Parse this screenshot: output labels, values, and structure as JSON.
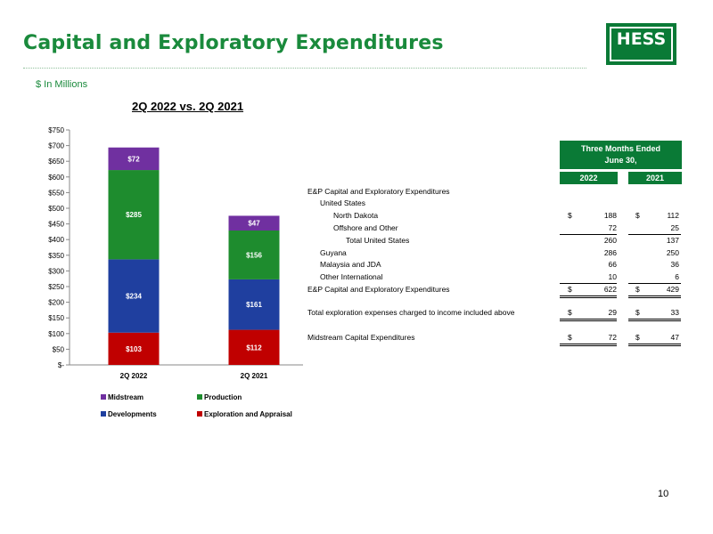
{
  "slide": {
    "title": "Capital and Exploratory Expenditures",
    "units": "$ In Millions",
    "page_number": "10",
    "logo_text": "HESS",
    "chart_heading": "2Q 2022 vs. 2Q 2021"
  },
  "colors": {
    "brand_green": "#0a7a36",
    "title_green": "#1a8a3c",
    "midstream": "#7030a0",
    "production": "#1e8c2e",
    "developments": "#1f3f9f",
    "exploration": "#c00000"
  },
  "chart_data": {
    "type": "bar",
    "stacked": true,
    "categories": [
      "2Q 2022",
      "2Q 2021"
    ],
    "series": [
      {
        "name": "Exploration and Appraisal",
        "values": [
          103,
          112
        ],
        "labels": [
          "$103",
          "$112"
        ],
        "color": "#c00000"
      },
      {
        "name": "Developments",
        "values": [
          234,
          161
        ],
        "labels": [
          "$234",
          "$161"
        ],
        "color": "#1f3f9f"
      },
      {
        "name": "Production",
        "values": [
          285,
          156
        ],
        "labels": [
          "$285",
          "$156"
        ],
        "color": "#1e8c2e"
      },
      {
        "name": "Midstream",
        "values": [
          72,
          47
        ],
        "labels": [
          "$72",
          "$47"
        ],
        "color": "#7030a0"
      }
    ],
    "ylim": [
      0,
      750
    ],
    "y_ticks": [
      0,
      50,
      100,
      150,
      200,
      250,
      300,
      350,
      400,
      450,
      500,
      550,
      600,
      650,
      700,
      750
    ],
    "y_tick_labels": [
      "$-",
      "$50",
      "$100",
      "$150",
      "$200",
      "$250",
      "$300",
      "$350",
      "$400",
      "$450",
      "$500",
      "$550",
      "$600",
      "$650",
      "$700",
      "$750"
    ],
    "legend": [
      "Midstream",
      "Production",
      "Developments",
      "Exploration and Appraisal"
    ],
    "legend_position": "bottom",
    "grid": false
  },
  "table": {
    "header": "Three Months Ended",
    "header2": "June 30,",
    "years": [
      "2022",
      "2021"
    ],
    "rows": [
      {
        "label": "E&P Capital and Exploratory Expenditures",
        "v1": "",
        "v2": "",
        "dollar": false
      },
      {
        "label": "United States",
        "v1": "",
        "v2": "",
        "dollar": false
      },
      {
        "label": "North Dakota",
        "v1": "188",
        "v2": "112",
        "dollar": true
      },
      {
        "label": "Offshore and Other",
        "v1": "72",
        "v2": "25",
        "dollar": false
      },
      {
        "label": "Total United States",
        "v1": "260",
        "v2": "137",
        "dollar": false
      },
      {
        "label": "Guyana",
        "v1": "286",
        "v2": "250",
        "dollar": false
      },
      {
        "label": "Malaysia and JDA",
        "v1": "66",
        "v2": "36",
        "dollar": false
      },
      {
        "label": "Other International",
        "v1": "10",
        "v2": "6",
        "dollar": false
      },
      {
        "label": "E&P Capital and Exploratory Expenditures",
        "v1": "622",
        "v2": "429",
        "dollar": true
      },
      {
        "label": "Total exploration expenses charged to income included above",
        "v1": "29",
        "v2": "33",
        "dollar": true
      },
      {
        "label": "Midstream Capital Expenditures",
        "v1": "72",
        "v2": "47",
        "dollar": true
      }
    ],
    "currency_symbol": "$"
  }
}
